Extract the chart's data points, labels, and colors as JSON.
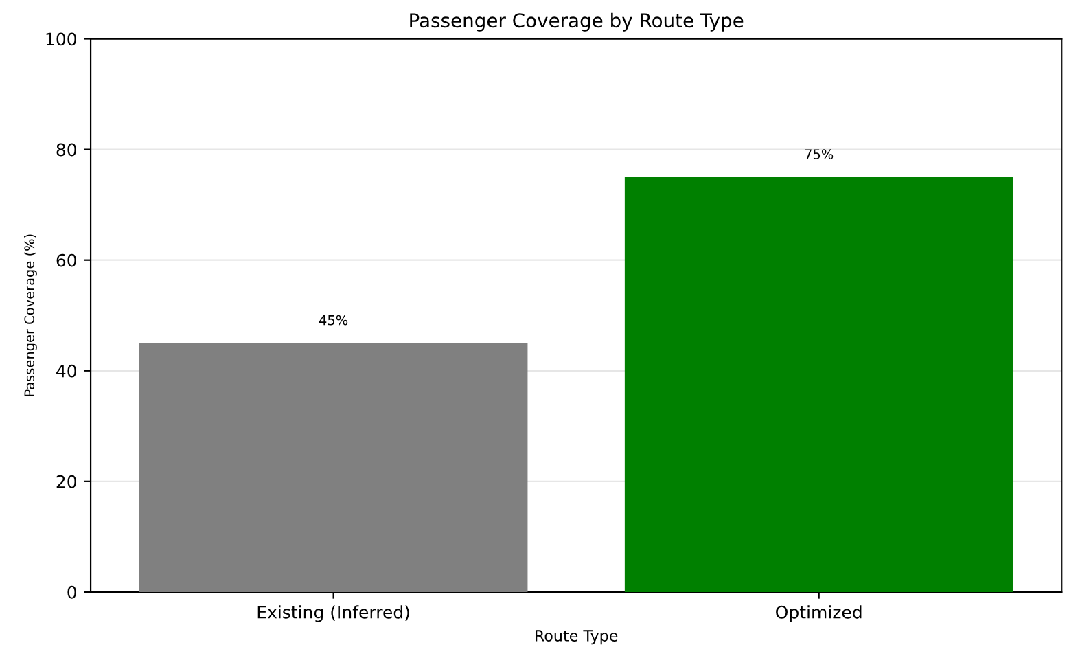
{
  "chart_data": {
    "type": "bar",
    "title": "Passenger Coverage by Route Type",
    "xlabel": "Route Type",
    "ylabel": "Passenger Coverage (%)",
    "categories": [
      "Existing (Inferred)",
      "Optimized"
    ],
    "values": [
      45,
      75
    ],
    "colors": [
      "#808080",
      "#008000"
    ],
    "value_labels": [
      "45%",
      "75%"
    ],
    "ylim": [
      0,
      100
    ],
    "yticks": [
      0,
      20,
      40,
      60,
      80,
      100
    ],
    "grid": "y"
  }
}
